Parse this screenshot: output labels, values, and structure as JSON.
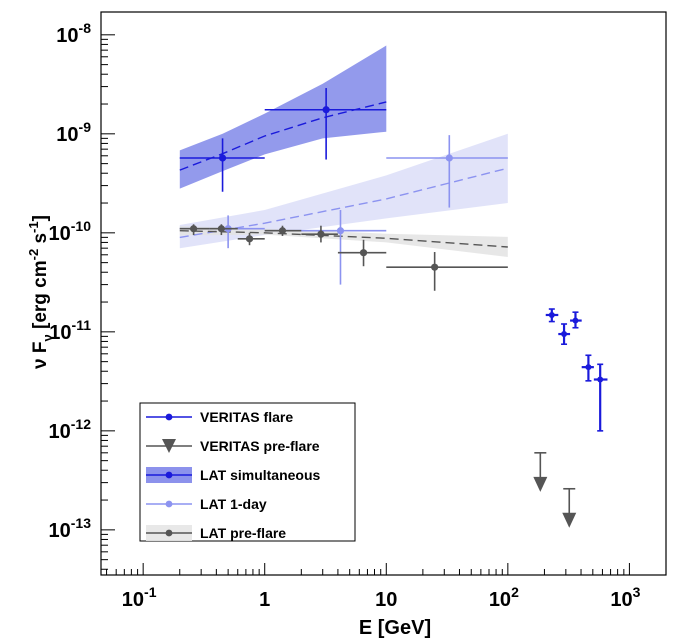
{
  "chart_data": {
    "type": "scatter",
    "xlabel": "E [GeV]",
    "ylabel": "ν F_ν [erg cm^-2 s^-1]",
    "x_scale": "log",
    "y_scale": "log",
    "xlim": [
      0.045,
      2000
    ],
    "ylim": [
      3.5e-14,
      1.7e-08
    ],
    "x_ticks": [
      {
        "value": 0.1,
        "mant": "10",
        "exp": "-1"
      },
      {
        "value": 1,
        "mant": "1",
        "exp": ""
      },
      {
        "value": 10,
        "mant": "10",
        "exp": ""
      },
      {
        "value": 100,
        "mant": "10",
        "exp": "2"
      },
      {
        "value": 1000,
        "mant": "10",
        "exp": "3"
      }
    ],
    "y_ticks": [
      {
        "value": 1e-13,
        "mant": "10",
        "exp": "-13"
      },
      {
        "value": 1e-12,
        "mant": "10",
        "exp": "-12"
      },
      {
        "value": 1e-11,
        "mant": "10",
        "exp": "-11"
      },
      {
        "value": 1e-10,
        "mant": "10",
        "exp": "-10"
      },
      {
        "value": 1e-09,
        "mant": "10",
        "exp": "-9"
      },
      {
        "value": 1e-08,
        "mant": "10",
        "exp": "-8"
      }
    ],
    "grid": false,
    "legend_position": "bottom-left",
    "legend": [
      {
        "label": "VERITAS flare",
        "style": "line-dot",
        "color": "#1a1adb"
      },
      {
        "label": "VERITAS pre-flare",
        "style": "down-triangle",
        "color": "#555555"
      },
      {
        "label": "LAT simultaneous",
        "style": "band",
        "color": "#1a1adb",
        "fill": "#7f86ea"
      },
      {
        "label": "LAT 1-day",
        "style": "line-dot",
        "color": "#8c93f0"
      },
      {
        "label": "LAT pre-flare",
        "style": "band",
        "color": "#555555",
        "fill": "#e6e6e6"
      }
    ],
    "bands": [
      {
        "series": "LAT simultaneous",
        "fill": "#6f78e6",
        "opacity": 0.75,
        "line": "#1a1adb",
        "x": [
          0.2,
          0.45,
          1,
          3,
          10
        ],
        "low": [
          2.8e-10,
          4.2e-10,
          6.2e-10,
          9e-10,
          1.05e-09
        ],
        "mid": [
          4.3e-10,
          6.3e-10,
          9.5e-10,
          1.45e-09,
          2.1e-09
        ],
        "high": [
          6.8e-10,
          1e-09,
          1.6e-09,
          3.2e-09,
          7.8e-09
        ]
      },
      {
        "series": "LAT 1-day",
        "fill": "#c9ccf4",
        "opacity": 0.55,
        "line": "#8c93f0",
        "x": [
          0.2,
          1,
          10,
          100
        ],
        "low": [
          7e-11,
          9.5e-11,
          1.4e-10,
          2e-10
        ],
        "mid": [
          9e-11,
          1.25e-10,
          2.2e-10,
          4.5e-10
        ],
        "high": [
          1.2e-10,
          1.7e-10,
          3.8e-10,
          1e-09
        ]
      },
      {
        "series": "LAT pre-flare",
        "fill": "#e3e3e3",
        "opacity": 0.85,
        "line": "#555555",
        "x": [
          0.2,
          1,
          10,
          100
        ],
        "low": [
          9.4e-11,
          9.6e-11,
          8e-11,
          5.7e-11
        ],
        "mid": [
          1.05e-10,
          1e-10,
          8.8e-11,
          7.2e-11
        ],
        "high": [
          1.17e-10,
          1.1e-10,
          9.8e-11,
          9.1e-11
        ]
      }
    ],
    "series": [
      {
        "name": "LAT simultaneous",
        "color": "#1a1adb",
        "points": [
          {
            "x": 0.45,
            "y": 5.7e-10,
            "xlo": 0.2,
            "xhi": 1.0,
            "ylo": 2.6e-10,
            "yhi": 9e-10
          },
          {
            "x": 3.2,
            "y": 1.75e-09,
            "xlo": 1.0,
            "xhi": 10.0,
            "ylo": 5.5e-10,
            "yhi": 2.9e-09
          }
        ]
      },
      {
        "name": "LAT 1-day",
        "color": "#8c93f0",
        "points": [
          {
            "x": 0.5,
            "y": 1.1e-10,
            "xlo": 0.2,
            "xhi": 1.0,
            "ylo": 7e-11,
            "yhi": 1.5e-10
          },
          {
            "x": 4.2,
            "y": 1.05e-10,
            "xlo": 1.0,
            "xhi": 10.0,
            "ylo": 3e-11,
            "yhi": 1.7e-10
          },
          {
            "x": 33,
            "y": 5.7e-10,
            "xlo": 10,
            "xhi": 100,
            "ylo": 1.8e-10,
            "yhi": 9.7e-10
          }
        ]
      },
      {
        "name": "LAT pre-flare",
        "color": "#555555",
        "points": [
          {
            "x": 0.26,
            "y": 1.1e-10,
            "xlo": 0.2,
            "xhi": 0.35,
            "ylo": 9.5e-11,
            "yhi": 1.22e-10
          },
          {
            "x": 0.44,
            "y": 1.1e-10,
            "xlo": 0.35,
            "xhi": 0.6,
            "ylo": 9.5e-11,
            "yhi": 1.22e-10
          },
          {
            "x": 0.75,
            "y": 8.7e-11,
            "xlo": 0.6,
            "xhi": 1.0,
            "ylo": 7.5e-11,
            "yhi": 1e-10
          },
          {
            "x": 1.4,
            "y": 1.05e-10,
            "xlo": 1.0,
            "xhi": 2.0,
            "ylo": 9.3e-11,
            "yhi": 1.18e-10
          },
          {
            "x": 2.9,
            "y": 9.7e-11,
            "xlo": 2.0,
            "xhi": 4.0,
            "ylo": 8e-11,
            "yhi": 1.18e-10
          },
          {
            "x": 6.5,
            "y": 6.3e-11,
            "xlo": 4.0,
            "xhi": 10.0,
            "ylo": 4.6e-11,
            "yhi": 8.5e-11
          },
          {
            "x": 25,
            "y": 4.5e-11,
            "xlo": 10,
            "xhi": 100,
            "ylo": 2.6e-11,
            "yhi": 6.4e-11
          }
        ]
      },
      {
        "name": "VERITAS flare",
        "color": "#1a1adb",
        "points": [
          {
            "x": 230,
            "y": 1.48e-11,
            "xlo": 205,
            "xhi": 260,
            "ylo": 1.27e-11,
            "yhi": 1.7e-11
          },
          {
            "x": 290,
            "y": 9.5e-12,
            "xlo": 260,
            "xhi": 325,
            "ylo": 7.5e-12,
            "yhi": 1.2e-11
          },
          {
            "x": 360,
            "y": 1.3e-11,
            "xlo": 325,
            "xhi": 405,
            "ylo": 1.1e-11,
            "yhi": 1.58e-11
          },
          {
            "x": 460,
            "y": 4.4e-12,
            "xlo": 405,
            "xhi": 510,
            "ylo": 3.2e-12,
            "yhi": 5.8e-12
          },
          {
            "x": 575,
            "y": 3.3e-12,
            "xlo": 510,
            "xhi": 660,
            "ylo": 1e-12,
            "yhi": 4.7e-12
          }
        ]
      },
      {
        "name": "VERITAS pre-flare",
        "color": "#555555",
        "upper_limits": true,
        "points": [
          {
            "x": 185,
            "y": 6e-13
          },
          {
            "x": 320,
            "y": 2.6e-13
          }
        ]
      }
    ]
  }
}
